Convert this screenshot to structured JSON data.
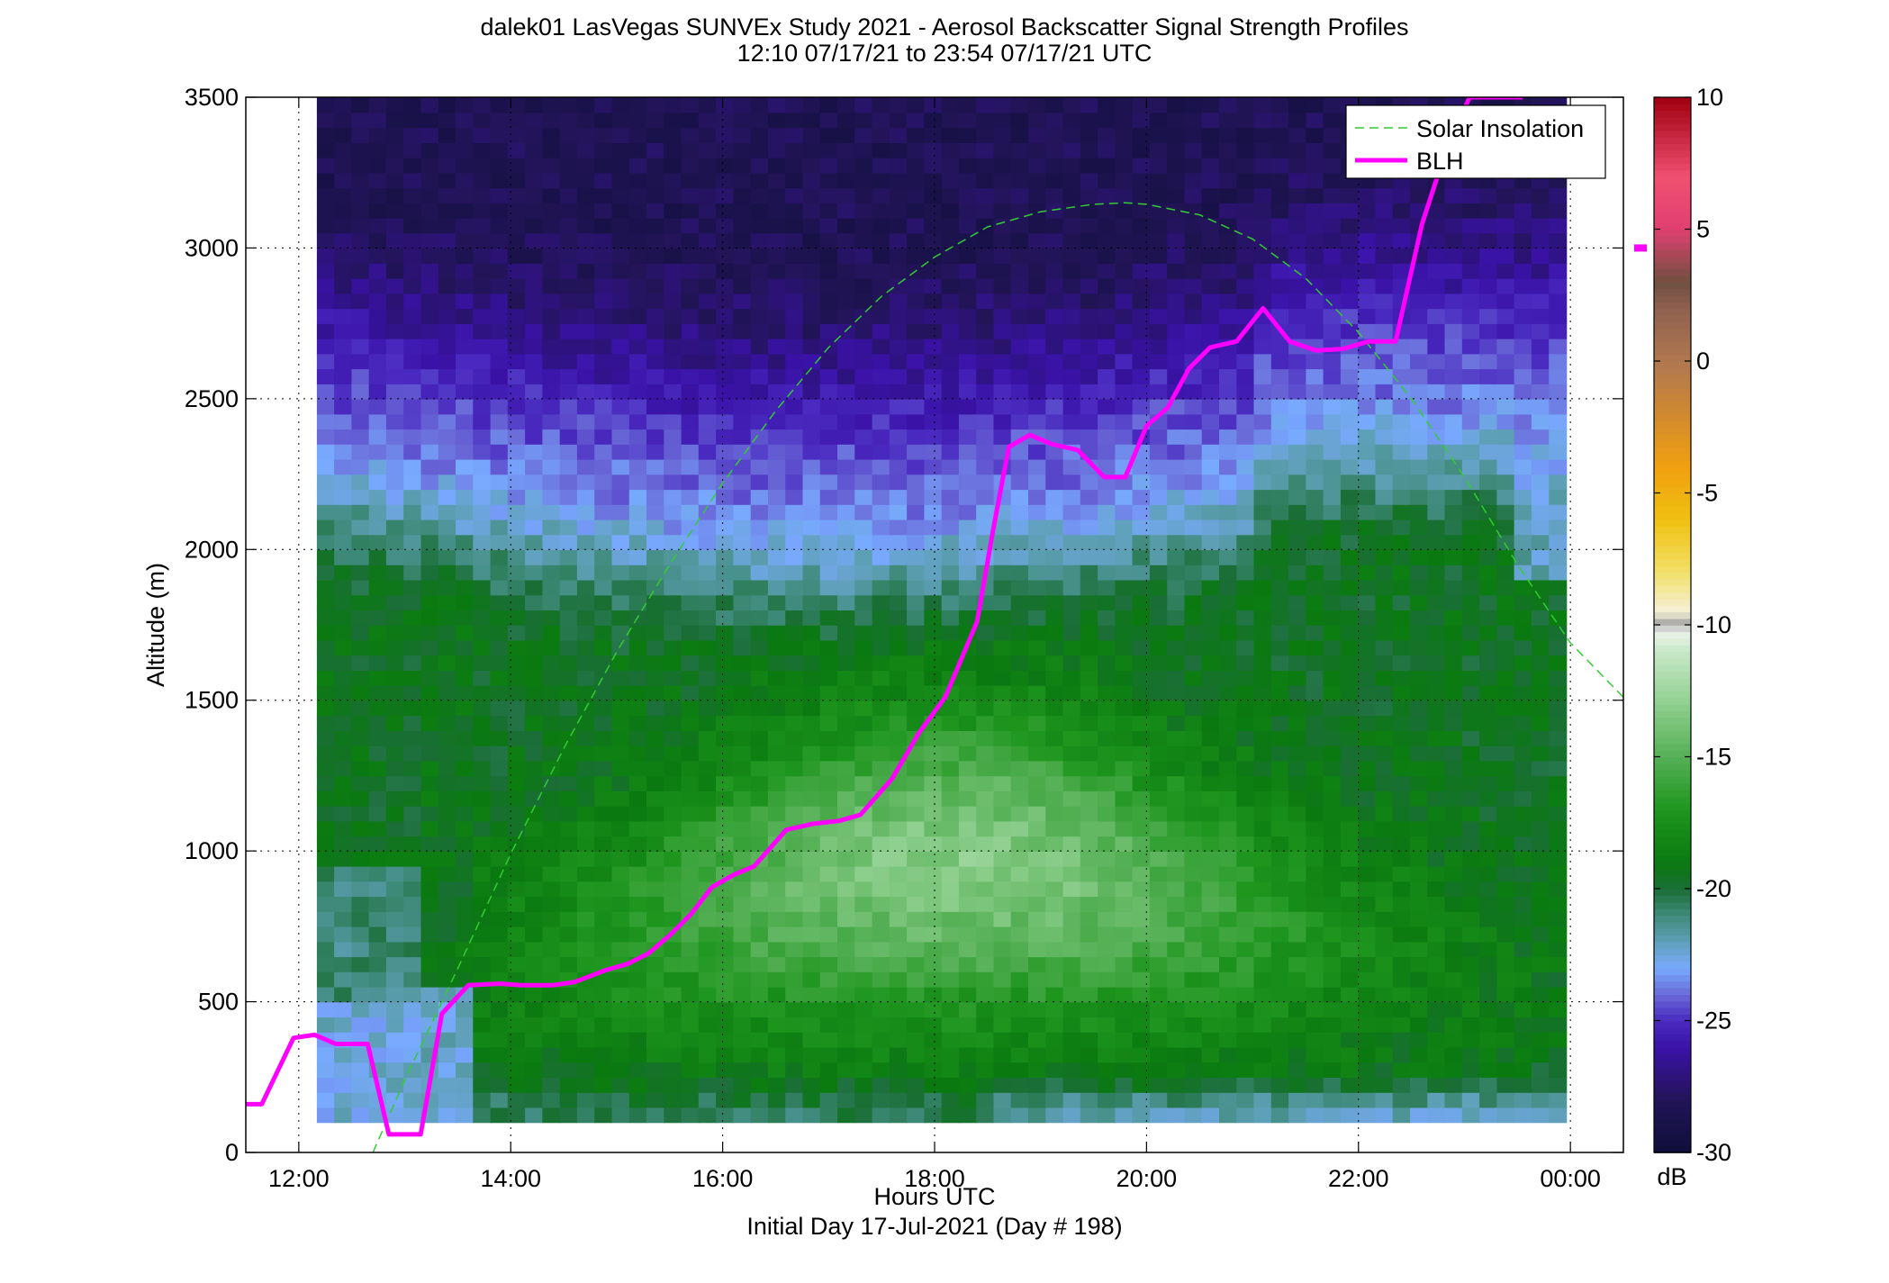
{
  "title_line1": "dalek01 LasVegas SUNVEx Study 2021 - Aerosol Backscatter Signal Strength Profiles",
  "title_line2": "12:10 07/17/21 to 23:54 07/17/21  UTC",
  "chart_data": {
    "type": "heatmap",
    "xlabel": "Hours UTC",
    "xlabel2": "Initial Day 17-Jul-2021 (Day # 198)",
    "ylabel": "Altitude (m)",
    "colorbar_label": "dB",
    "xlim": [
      11.5,
      24.5
    ],
    "ylim": [
      0,
      3500
    ],
    "xticks": [
      12,
      14,
      16,
      18,
      20,
      22,
      24
    ],
    "xtick_labels": [
      "12:00",
      "14:00",
      "16:00",
      "18:00",
      "20:00",
      "22:00",
      "00:00"
    ],
    "yticks": [
      0,
      500,
      1000,
      1500,
      2000,
      2500,
      3000,
      3500
    ],
    "ytick_labels": [
      "0",
      "500",
      "1000",
      "1500",
      "2000",
      "2500",
      "3000",
      "3500"
    ],
    "colorbar_range": [
      -30,
      10
    ],
    "colorbar_ticks": [
      10,
      5,
      0,
      -5,
      -10,
      -15,
      -20,
      -25,
      -30
    ],
    "colorbar_tick_labels": [
      "10",
      "5",
      "0",
      "-5",
      "-10",
      "-15",
      "-20",
      "-25",
      "-30"
    ],
    "grid": true,
    "legend_position": "top-right",
    "series": [
      {
        "name": "Solar Insolation",
        "style": "dashed",
        "color": "#33cc33",
        "x": [
          12.7,
          13.0,
          13.5,
          14.0,
          14.5,
          15.0,
          15.5,
          16.0,
          16.5,
          17.0,
          17.5,
          18.0,
          18.5,
          19.0,
          19.5,
          19.8,
          20.0,
          20.5,
          21.0,
          21.5,
          22.0,
          22.5,
          23.0,
          23.5,
          24.0,
          24.5
        ],
        "y": [
          0,
          240,
          610,
          990,
          1340,
          1660,
          1950,
          2220,
          2460,
          2670,
          2840,
          2970,
          3070,
          3120,
          3145,
          3150,
          3145,
          3110,
          3030,
          2900,
          2720,
          2500,
          2240,
          1950,
          1690,
          1510
        ]
      },
      {
        "name": "BLH",
        "style": "solid",
        "color": "#ff00ff",
        "x": [
          11.5,
          11.65,
          11.95,
          12.15,
          12.35,
          12.65,
          12.85,
          13.15,
          13.35,
          13.6,
          13.9,
          14.1,
          14.4,
          14.6,
          14.9,
          15.1,
          15.3,
          15.5,
          15.7,
          15.9,
          16.1,
          16.3,
          16.6,
          16.85,
          17.1,
          17.3,
          17.6,
          17.85,
          18.1,
          18.4,
          18.55,
          18.7,
          18.9,
          19.1,
          19.35,
          19.6,
          19.8,
          20.0,
          20.2,
          20.4,
          20.6,
          20.85,
          21.1,
          21.35,
          21.6,
          21.85,
          22.1,
          22.35,
          22.6,
          22.85,
          23.05,
          23.3,
          23.55
        ],
        "y": [
          160,
          160,
          380,
          390,
          360,
          360,
          60,
          60,
          460,
          555,
          560,
          555,
          555,
          565,
          605,
          625,
          660,
          720,
          790,
          880,
          920,
          950,
          1070,
          1090,
          1100,
          1120,
          1240,
          1390,
          1510,
          1760,
          2060,
          2340,
          2380,
          2350,
          2330,
          2240,
          2240,
          2410,
          2470,
          2600,
          2670,
          2690,
          2800,
          2690,
          2660,
          2665,
          2690,
          2690,
          3080,
          3350,
          3500,
          3500,
          3500
        ]
      }
    ],
    "heatmap": {
      "x_start": 12.17,
      "x_end": 23.96,
      "y_start": 100,
      "y_end": 3500,
      "blh_offset_m": 3000,
      "colormap_stops": [
        {
          "v": -30,
          "color": "#0f0f3a"
        },
        {
          "v": -28,
          "color": "#221457"
        },
        {
          "v": -26,
          "color": "#3a12a8"
        },
        {
          "v": -25,
          "color": "#4a2ac0"
        },
        {
          "v": -24,
          "color": "#6a6ad8"
        },
        {
          "v": -23,
          "color": "#78aaff"
        },
        {
          "v": -22,
          "color": "#5fa0b8"
        },
        {
          "v": -21,
          "color": "#3f8a7a"
        },
        {
          "v": -20,
          "color": "#1a6e36"
        },
        {
          "v": -19,
          "color": "#0a7a10"
        },
        {
          "v": -17,
          "color": "#1e961e"
        },
        {
          "v": -15,
          "color": "#55b055"
        },
        {
          "v": -13,
          "color": "#8ecf8e"
        },
        {
          "v": -11,
          "color": "#c8e8c8"
        },
        {
          "v": -10.2,
          "color": "#eef4ee"
        },
        {
          "v": -10,
          "color": "#9a9a9a"
        },
        {
          "v": -9.5,
          "color": "#f4f0d8"
        },
        {
          "v": -8,
          "color": "#f2e06a"
        },
        {
          "v": -6,
          "color": "#f0c010"
        },
        {
          "v": -4,
          "color": "#f0a010"
        },
        {
          "v": -2,
          "color": "#d08830"
        },
        {
          "v": 0,
          "color": "#b07850"
        },
        {
          "v": 2,
          "color": "#906050"
        },
        {
          "v": 3,
          "color": "#705040"
        },
        {
          "v": 5,
          "color": "#e04070"
        },
        {
          "v": 7,
          "color": "#f05070"
        },
        {
          "v": 10,
          "color": "#a00010"
        }
      ]
    }
  },
  "legend": {
    "items": [
      {
        "label": "Solar Insolation"
      },
      {
        "label": "BLH"
      }
    ]
  }
}
